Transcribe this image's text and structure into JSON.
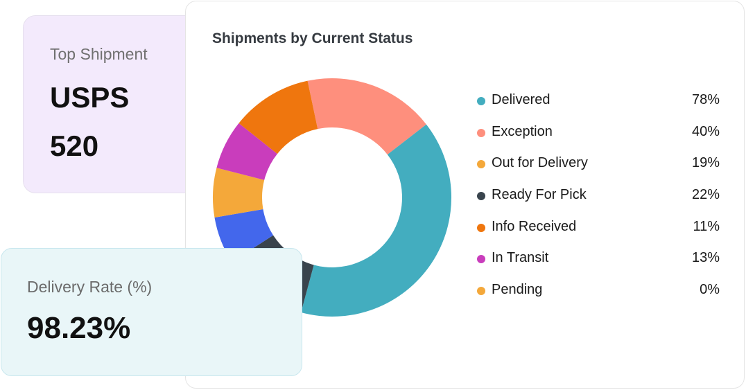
{
  "top_shipment": {
    "label": "Top Shipment",
    "carrier": "USPS",
    "count": "520"
  },
  "delivery_rate": {
    "label": "Delivery Rate (%)",
    "value": "98.23%"
  },
  "chart_data": {
    "type": "pie",
    "variant": "donut",
    "title": "Shipments by Current Status",
    "legend_position": "right",
    "legend": [
      {
        "label": "Delivered",
        "value": "78%",
        "color": "#43adbf"
      },
      {
        "label": "Exception",
        "value": "40%",
        "color": "#fe8f7d"
      },
      {
        "label": "Out for Delivery",
        "value": "19%",
        "color": "#f4a83a"
      },
      {
        "label": "Ready For Pick",
        "value": "22%",
        "color": "#39444d"
      },
      {
        "label": "Info Received",
        "value": "11%",
        "color": "#ef760e"
      },
      {
        "label": "In Transit",
        "value": "13%",
        "color": "#c93dbc"
      },
      {
        "label": "Pending",
        "value": "0%",
        "color": "#f4a83a"
      }
    ],
    "slices_clockwise_from_top": [
      {
        "color": "#fe8f7d",
        "share": 0.178,
        "start_share": -0.033
      },
      {
        "color": "#43adbf",
        "share": 0.397
      },
      {
        "color": "#39444d",
        "share": 0.117
      },
      {
        "color": "#4367ec",
        "share": 0.064
      },
      {
        "color": "#f4a83a",
        "share": 0.067
      },
      {
        "color": "#c93dbc",
        "share": 0.067
      },
      {
        "color": "#ef760e",
        "share": 0.11
      }
    ]
  }
}
